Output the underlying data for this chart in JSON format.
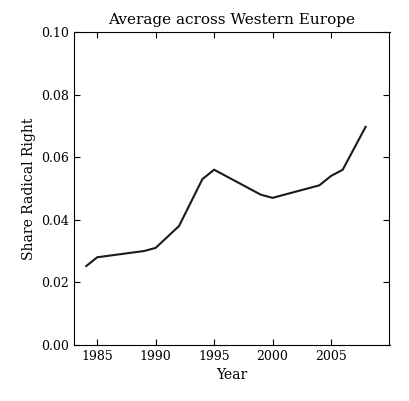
{
  "title": "Average across Western Europe",
  "xlabel": "Year",
  "ylabel": "Share Radical Right",
  "x": [
    1984,
    1985,
    1987,
    1989,
    1990,
    1992,
    1994,
    1995,
    1997,
    1999,
    2000,
    2001,
    2002,
    2003,
    2004,
    2005,
    2006,
    2007,
    2008
  ],
  "y": [
    0.025,
    0.028,
    0.029,
    0.03,
    0.031,
    0.038,
    0.053,
    0.056,
    0.052,
    0.048,
    0.047,
    0.048,
    0.049,
    0.05,
    0.051,
    0.054,
    0.056,
    0.063,
    0.07
  ],
  "xlim": [
    1983,
    2010
  ],
  "ylim": [
    0.0,
    0.1
  ],
  "xticks": [
    1985,
    1990,
    1995,
    2000,
    2005
  ],
  "yticks": [
    0.0,
    0.02,
    0.04,
    0.06,
    0.08,
    0.1
  ],
  "line_color": "#1a1a1a",
  "line_width": 1.5,
  "background_color": "#ffffff",
  "title_fontsize": 11,
  "label_fontsize": 10,
  "tick_fontsize": 9
}
